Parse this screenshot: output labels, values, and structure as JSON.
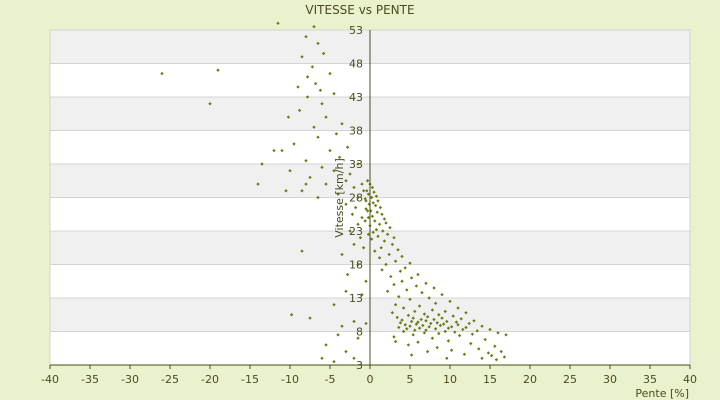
{
  "chart_data": {
    "type": "scatter",
    "title": "VITESSE vs PENTE",
    "xlabel": "Pente [%]",
    "ylabel": "Vitesse [km/h]",
    "xlim": [
      -40,
      40
    ],
    "ylim": [
      3,
      53
    ],
    "xticks": [
      -40,
      -35,
      -30,
      -25,
      -20,
      -15,
      -10,
      -5,
      0,
      5,
      10,
      15,
      20,
      25,
      30,
      35,
      40
    ],
    "yticks": [
      3,
      8,
      13,
      18,
      23,
      28,
      33,
      38,
      43,
      48,
      53
    ],
    "grid": "horizontal bands",
    "legend": "none",
    "colors": {
      "background": "#eaf1cd",
      "band_light": "#ffffff",
      "band_dark": "#f0f0f0",
      "grid": "#d4d4d4",
      "axis": "#4b4b1e",
      "marker": "#6b7c12",
      "text": "#4b4b1e"
    },
    "series": [
      {
        "values": [
          [
            -11.5,
            54.0
          ],
          [
            -7.0,
            53.5
          ],
          [
            -8.0,
            52.0
          ],
          [
            -6.5,
            51.0
          ],
          [
            -5.8,
            49.5
          ],
          [
            -8.5,
            49.0
          ],
          [
            -7.2,
            47.5
          ],
          [
            -5.0,
            46.5
          ],
          [
            -6.8,
            45.0
          ],
          [
            -9.0,
            44.5
          ],
          [
            -4.5,
            43.5
          ],
          [
            -7.8,
            43.0
          ],
          [
            -6.0,
            42.0
          ],
          [
            -8.8,
            41.0
          ],
          [
            -5.5,
            40.0
          ],
          [
            -3.5,
            39.0
          ],
          [
            -7.0,
            38.5
          ],
          [
            -4.2,
            37.5
          ],
          [
            -6.5,
            37.0
          ],
          [
            -9.5,
            36.0
          ],
          [
            -2.8,
            35.5
          ],
          [
            -5.0,
            35.0
          ],
          [
            -12.0,
            35.0
          ],
          [
            -3.8,
            34.0
          ],
          [
            -8.0,
            33.5
          ],
          [
            -1.5,
            33.0
          ],
          [
            -6.0,
            32.5
          ],
          [
            -4.5,
            32.0
          ],
          [
            -10.0,
            32.0
          ],
          [
            -2.5,
            31.5
          ],
          [
            -7.5,
            31.0
          ],
          [
            -3.0,
            30.5
          ],
          [
            -5.5,
            30.0
          ],
          [
            -1.0,
            30.0
          ],
          [
            -2.0,
            29.5
          ],
          [
            -8.5,
            29.0
          ],
          [
            -0.8,
            29.0
          ],
          [
            -4.0,
            28.5
          ],
          [
            -6.5,
            28.0
          ],
          [
            -1.5,
            28.0
          ],
          [
            -0.5,
            27.5
          ],
          [
            -3.0,
            27.0
          ],
          [
            -1.8,
            26.5
          ],
          [
            -0.3,
            26.0
          ],
          [
            -2.2,
            25.5
          ],
          [
            -1.0,
            25.0
          ],
          [
            -0.6,
            24.5
          ],
          [
            -1.5,
            24.0
          ],
          [
            -2.5,
            23.0
          ],
          [
            -0.2,
            22.5
          ],
          [
            -1.2,
            22.0
          ],
          [
            -2.0,
            21.0
          ],
          [
            -0.8,
            20.5
          ],
          [
            -3.5,
            19.5
          ],
          [
            -8.5,
            20.0
          ],
          [
            -1.5,
            18.0
          ],
          [
            -2.8,
            16.5
          ],
          [
            -0.5,
            15.5
          ],
          [
            -3.0,
            14.0
          ],
          [
            -1.0,
            13.5
          ],
          [
            -4.5,
            12.0
          ],
          [
            -9.8,
            10.5
          ],
          [
            -7.5,
            10.0
          ],
          [
            -2.0,
            9.5
          ],
          [
            -3.5,
            8.8
          ],
          [
            -0.5,
            9.2
          ],
          [
            -4.0,
            7.5
          ],
          [
            -1.5,
            7.0
          ],
          [
            -5.5,
            6.0
          ],
          [
            -3.0,
            5.0
          ],
          [
            -2.0,
            4.0
          ],
          [
            -6.0,
            4.0
          ],
          [
            -4.5,
            3.5
          ],
          [
            -26.0,
            46.5
          ],
          [
            -19.0,
            47.0
          ],
          [
            -20.0,
            42.0
          ],
          [
            -14.0,
            30.0
          ],
          [
            -10.5,
            29.0
          ],
          [
            -13.5,
            33.0
          ],
          [
            -11.0,
            35.0
          ],
          [
            -10.2,
            40.0
          ],
          [
            -8.0,
            30.0
          ],
          [
            -6.2,
            44.0
          ],
          [
            -7.8,
            46.0
          ],
          [
            -0.3,
            30.5
          ],
          [
            0.0,
            30.0
          ],
          [
            0.3,
            29.5
          ],
          [
            -0.4,
            29.0
          ],
          [
            0.5,
            28.8
          ],
          [
            -0.2,
            28.5
          ],
          [
            0.8,
            28.2
          ],
          [
            0.2,
            28.0
          ],
          [
            -0.6,
            27.8
          ],
          [
            1.0,
            27.5
          ],
          [
            0.4,
            27.2
          ],
          [
            -0.1,
            27.0
          ],
          [
            0.7,
            26.8
          ],
          [
            1.3,
            26.5
          ],
          [
            -0.5,
            26.3
          ],
          [
            0.1,
            26.0
          ],
          [
            0.9,
            25.8
          ],
          [
            1.5,
            25.5
          ],
          [
            0.3,
            25.2
          ],
          [
            -0.2,
            25.0
          ],
          [
            1.8,
            24.8
          ],
          [
            0.6,
            24.5
          ],
          [
            2.0,
            24.2
          ],
          [
            1.2,
            24.0
          ],
          [
            0.0,
            23.8
          ],
          [
            2.5,
            23.5
          ],
          [
            0.8,
            23.2
          ],
          [
            1.6,
            23.0
          ],
          [
            0.4,
            22.8
          ],
          [
            2.2,
            22.5
          ],
          [
            1.0,
            22.2
          ],
          [
            3.0,
            22.0
          ],
          [
            0.2,
            21.8
          ],
          [
            1.8,
            21.5
          ],
          [
            2.8,
            21.0
          ],
          [
            1.4,
            20.5
          ],
          [
            3.5,
            20.2
          ],
          [
            0.6,
            20.0
          ],
          [
            2.4,
            19.5
          ],
          [
            4.0,
            19.2
          ],
          [
            1.2,
            19.0
          ],
          [
            3.2,
            18.5
          ],
          [
            5.0,
            18.2
          ],
          [
            2.0,
            18.0
          ],
          [
            4.4,
            17.5
          ],
          [
            1.5,
            17.2
          ],
          [
            3.8,
            17.0
          ],
          [
            6.0,
            16.5
          ],
          [
            2.6,
            16.2
          ],
          [
            5.2,
            16.0
          ],
          [
            4.0,
            15.5
          ],
          [
            7.0,
            15.2
          ],
          [
            3.0,
            15.0
          ],
          [
            5.8,
            14.8
          ],
          [
            8.0,
            14.5
          ],
          [
            4.6,
            14.2
          ],
          [
            2.2,
            14.0
          ],
          [
            6.5,
            13.8
          ],
          [
            9.0,
            13.5
          ],
          [
            3.6,
            13.2
          ],
          [
            7.4,
            13.0
          ],
          [
            5.0,
            12.8
          ],
          [
            10.0,
            12.5
          ],
          [
            8.2,
            12.2
          ],
          [
            3.2,
            12.0
          ],
          [
            6.2,
            11.8
          ],
          [
            11.0,
            11.5
          ],
          [
            4.2,
            11.5
          ],
          [
            7.8,
            11.2
          ],
          [
            9.4,
            11.0
          ],
          [
            5.6,
            11.0
          ],
          [
            12.0,
            10.8
          ],
          [
            2.8,
            10.8
          ],
          [
            6.8,
            10.6
          ],
          [
            8.6,
            10.5
          ],
          [
            4.8,
            10.4
          ],
          [
            10.4,
            10.3
          ],
          [
            7.2,
            10.2
          ],
          [
            3.4,
            10.1
          ],
          [
            9.0,
            10.0
          ],
          [
            5.4,
            10.0
          ],
          [
            11.4,
            9.9
          ],
          [
            6.4,
            9.8
          ],
          [
            8.0,
            9.8
          ],
          [
            4.0,
            9.7
          ],
          [
            13.0,
            9.6
          ],
          [
            7.0,
            9.6
          ],
          [
            9.6,
            9.5
          ],
          [
            5.2,
            9.5
          ],
          [
            10.8,
            9.4
          ],
          [
            6.0,
            9.4
          ],
          [
            8.4,
            9.3
          ],
          [
            3.8,
            9.3
          ],
          [
            12.4,
            9.2
          ],
          [
            7.6,
            9.2
          ],
          [
            5.8,
            9.1
          ],
          [
            9.2,
            9.1
          ],
          [
            4.4,
            9.0
          ],
          [
            11.0,
            9.0
          ],
          [
            6.6,
            8.9
          ],
          [
            8.8,
            8.9
          ],
          [
            14.0,
            8.8
          ],
          [
            5.0,
            8.8
          ],
          [
            10.2,
            8.7
          ],
          [
            7.4,
            8.7
          ],
          [
            3.6,
            8.6
          ],
          [
            12.0,
            8.6
          ],
          [
            6.2,
            8.5
          ],
          [
            9.8,
            8.5
          ],
          [
            4.6,
            8.4
          ],
          [
            8.2,
            8.4
          ],
          [
            15.0,
            8.3
          ],
          [
            11.6,
            8.3
          ],
          [
            5.6,
            8.2
          ],
          [
            7.0,
            8.2
          ],
          [
            13.4,
            8.1
          ],
          [
            9.4,
            8.0
          ],
          [
            4.2,
            8.0
          ],
          [
            10.6,
            7.9
          ],
          [
            6.8,
            7.8
          ],
          [
            16.0,
            7.8
          ],
          [
            8.6,
            7.7
          ],
          [
            12.8,
            7.6
          ],
          [
            5.4,
            7.5
          ],
          [
            17.0,
            7.5
          ],
          [
            11.2,
            7.4
          ],
          [
            3.0,
            7.2
          ],
          [
            7.8,
            7.0
          ],
          [
            14.4,
            6.8
          ],
          [
            9.8,
            6.6
          ],
          [
            6.0,
            6.4
          ],
          [
            12.6,
            6.2
          ],
          [
            4.8,
            6.0
          ],
          [
            15.6,
            5.8
          ],
          [
            8.4,
            5.6
          ],
          [
            13.6,
            5.4
          ],
          [
            10.2,
            5.2
          ],
          [
            16.4,
            5.0
          ],
          [
            7.2,
            5.0
          ],
          [
            14.8,
            4.8
          ],
          [
            11.8,
            4.6
          ],
          [
            15.2,
            4.4
          ],
          [
            16.8,
            4.2
          ],
          [
            9.6,
            4.0
          ],
          [
            14.0,
            4.0
          ],
          [
            15.8,
            3.8
          ],
          [
            5.2,
            4.5
          ],
          [
            3.2,
            6.5
          ]
        ]
      }
    ]
  }
}
